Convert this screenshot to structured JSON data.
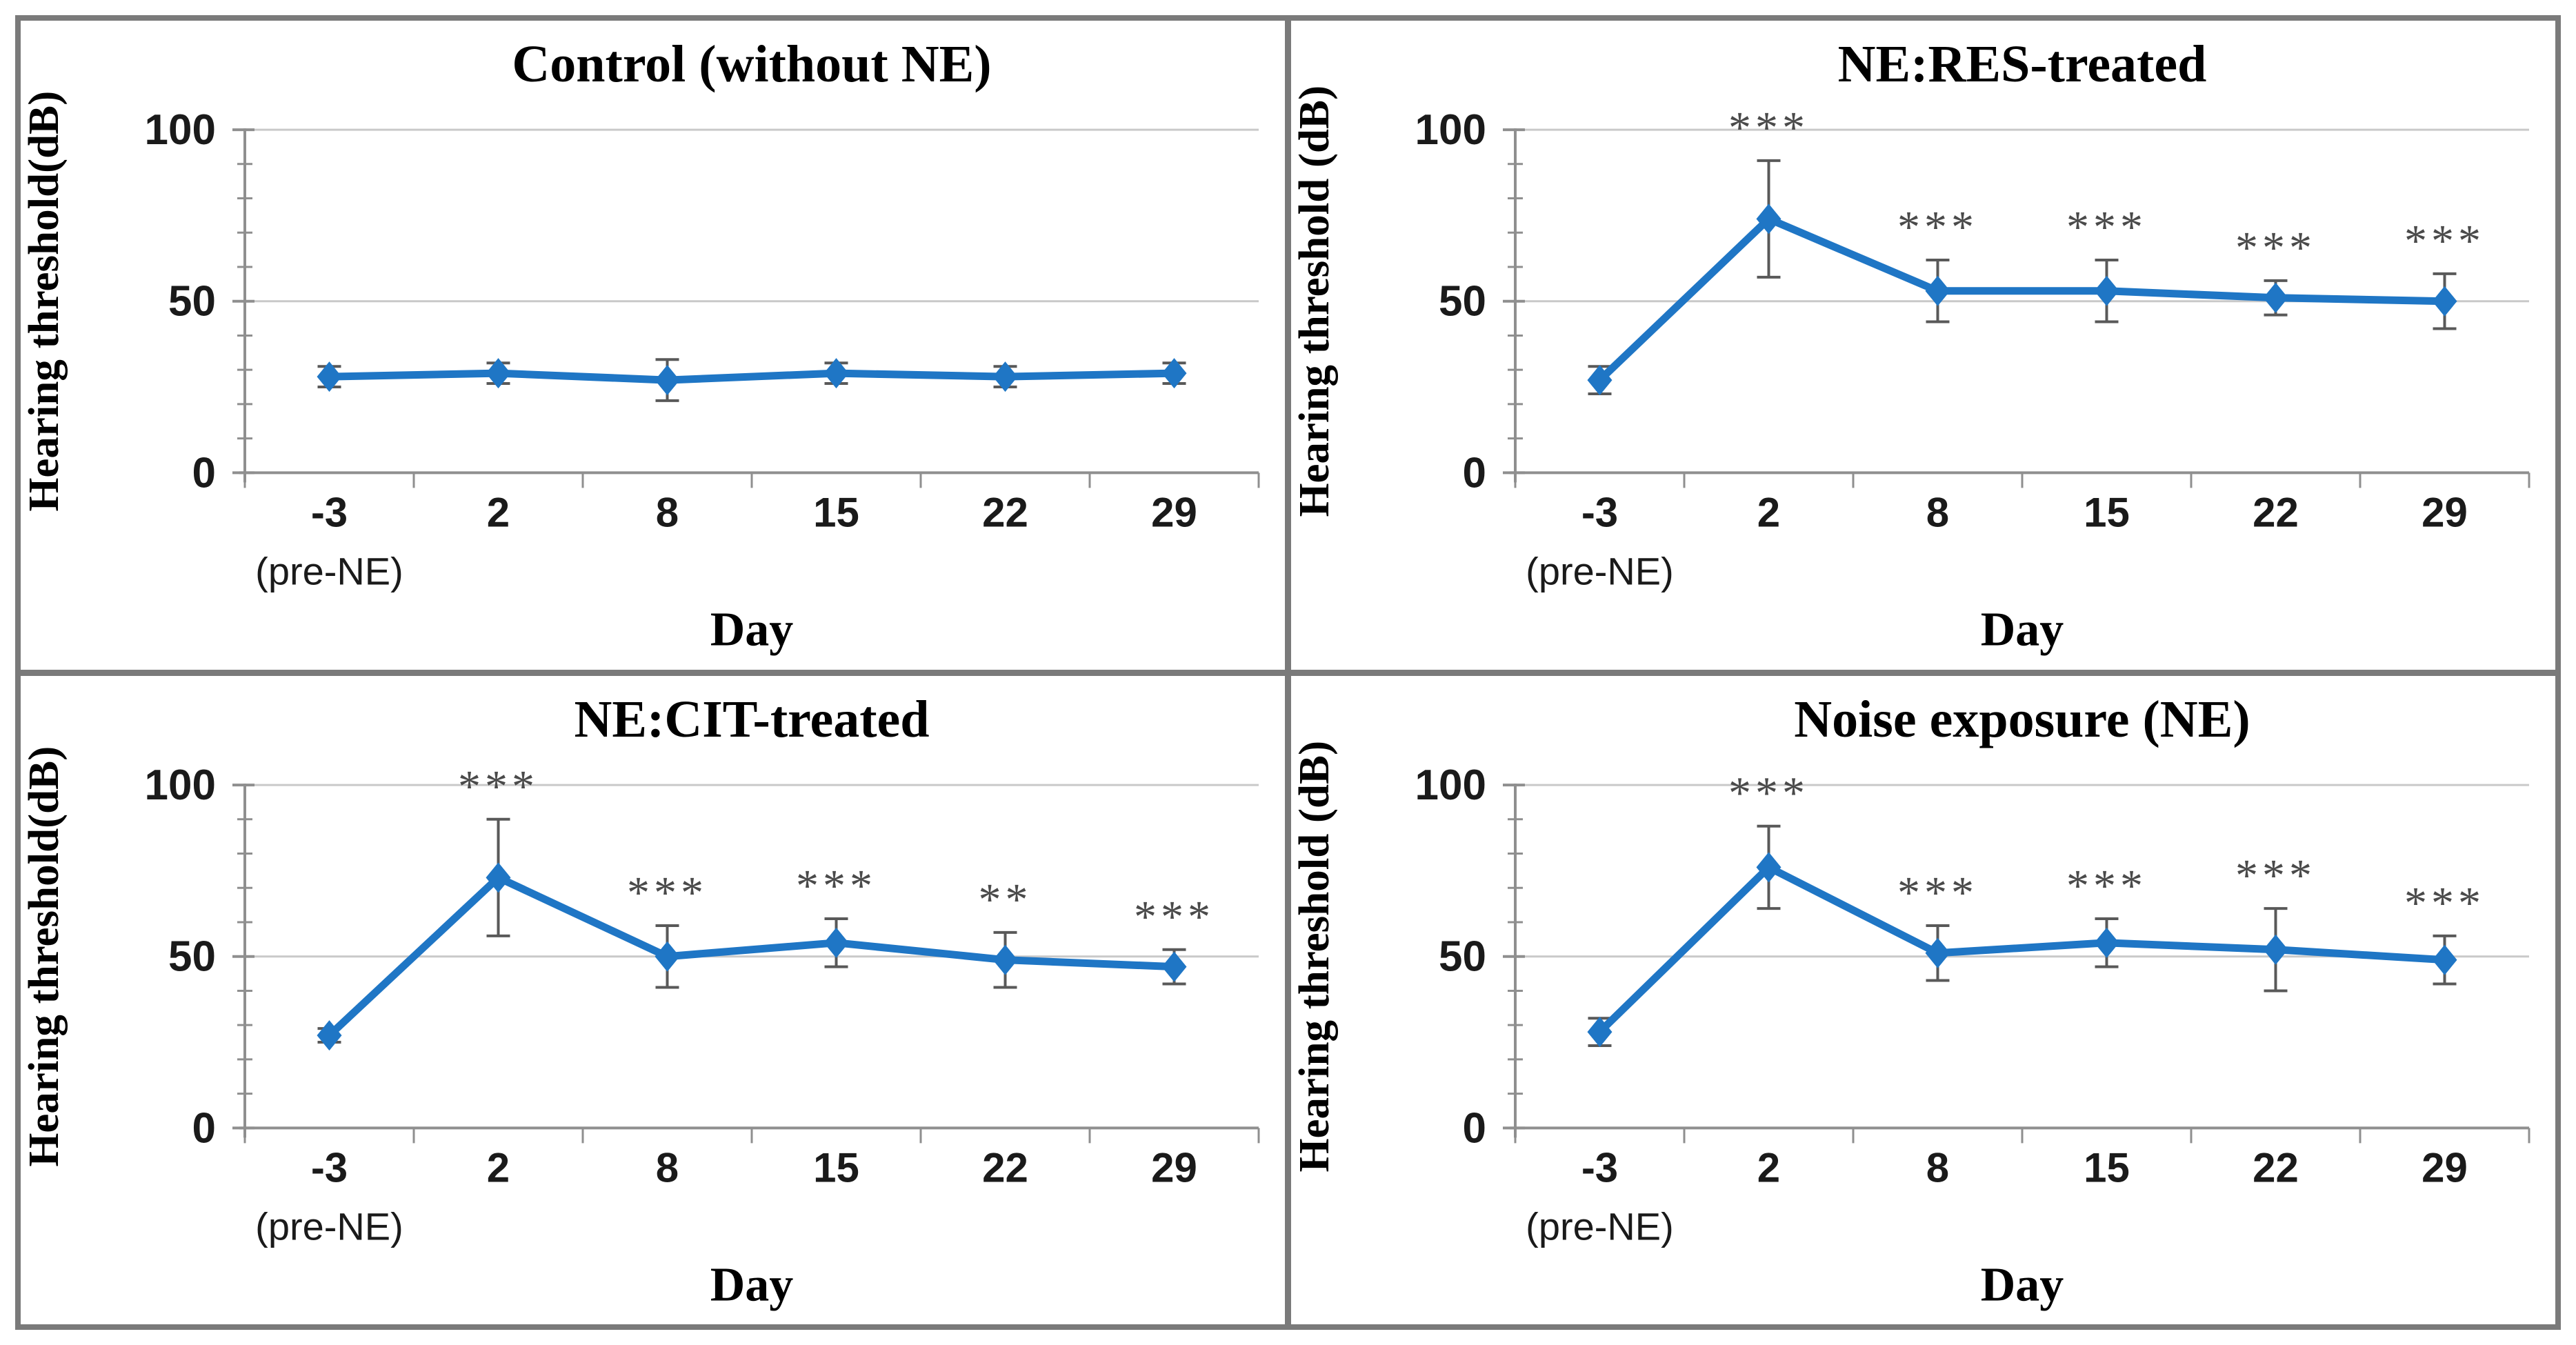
{
  "figure": {
    "description": "2x2 grid of mean hearing-threshold line charts with error bars",
    "panels_order": [
      "control",
      "ne-res-treated",
      "ne-cit-treated",
      "noise-exposure"
    ]
  },
  "colors": {
    "series_line": "#1F76C5",
    "marker": "#1F76C5",
    "error_bar": "#595959",
    "axis_line": "#8F8F8F",
    "gridline": "#C9C9C9",
    "significance": "#4A4A4A",
    "tick_label": "#1A1A1A",
    "title_text": "#000000",
    "panel_border": "#7A7A7A",
    "background": "#FFFFFF"
  },
  "chart_data": [
    {
      "type": "line",
      "title": "Control (without NE)",
      "ylabel": "Hearing threshold(dB)",
      "xlabel": "Day",
      "categories": [
        "-3",
        "2",
        "8",
        "15",
        "22",
        "29"
      ],
      "first_category_note": "(pre-NE)",
      "ylim": [
        0,
        100
      ],
      "yticks": [
        0,
        50,
        100
      ],
      "y_minor_step": 10,
      "grid": "horizontal-major",
      "legend": "none",
      "series": [
        {
          "name": "Hearing threshold",
          "values": [
            28,
            29,
            27,
            29,
            28,
            29
          ],
          "errors": [
            3,
            3,
            6,
            3,
            3,
            3
          ],
          "significance": [
            "",
            "",
            "",
            "",
            "",
            ""
          ]
        }
      ]
    },
    {
      "type": "line",
      "title": "NE:RES-treated",
      "ylabel": "Hearing threshold (dB)",
      "xlabel": "Day",
      "categories": [
        "-3",
        "2",
        "8",
        "15",
        "22",
        "29"
      ],
      "first_category_note": "(pre-NE)",
      "ylim": [
        0,
        100
      ],
      "yticks": [
        0,
        50,
        100
      ],
      "y_minor_step": 10,
      "grid": "horizontal-major",
      "legend": "none",
      "series": [
        {
          "name": "Hearing threshold",
          "values": [
            27,
            74,
            53,
            53,
            51,
            50
          ],
          "errors": [
            4,
            17,
            9,
            9,
            5,
            8
          ],
          "significance": [
            "",
            "***",
            "***",
            "***",
            "***",
            "***"
          ]
        }
      ]
    },
    {
      "type": "line",
      "title": "NE:CIT-treated",
      "ylabel": "Hearing threshold(dB)",
      "xlabel": "Day",
      "categories": [
        "-3",
        "2",
        "8",
        "15",
        "22",
        "29"
      ],
      "first_category_note": "(pre-NE)",
      "ylim": [
        0,
        100
      ],
      "yticks": [
        0,
        50,
        100
      ],
      "y_minor_step": 10,
      "grid": "horizontal-major",
      "legend": "none",
      "series": [
        {
          "name": "Hearing threshold",
          "values": [
            27,
            73,
            50,
            54,
            49,
            47
          ],
          "errors": [
            2,
            17,
            9,
            7,
            8,
            5
          ],
          "significance": [
            "",
            "***",
            "***",
            "***",
            "**",
            "***"
          ]
        }
      ]
    },
    {
      "type": "line",
      "title": "Noise exposure (NE)",
      "ylabel": "Hearing threshold (dB)",
      "xlabel": "Day",
      "categories": [
        "-3",
        "2",
        "8",
        "15",
        "22",
        "29"
      ],
      "first_category_note": "(pre-NE)",
      "ylim": [
        0,
        100
      ],
      "yticks": [
        0,
        50,
        100
      ],
      "y_minor_step": 10,
      "grid": "horizontal-major",
      "legend": "none",
      "series": [
        {
          "name": "Hearing threshold",
          "values": [
            28,
            76,
            51,
            54,
            52,
            49
          ],
          "errors": [
            4,
            12,
            8,
            7,
            12,
            7
          ],
          "significance": [
            "",
            "***",
            "***",
            "***",
            "***",
            "***"
          ]
        }
      ]
    }
  ]
}
